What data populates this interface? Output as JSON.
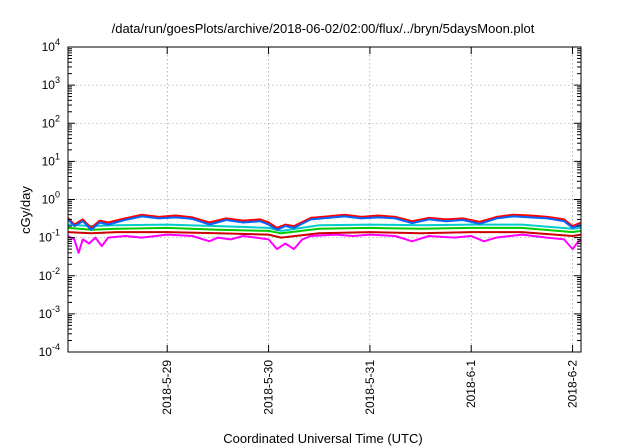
{
  "chart_data": {
    "type": "line",
    "title": "/data/run/goesPlots/archive/2018-06-02/02:00/flux/../bryn/5daysMoon.plot",
    "xlabel": "Coordinated Universal Time (UTC)",
    "ylabel": "cGy/day",
    "y_scale": "log",
    "ylim": [
      0.0001,
      10000
    ],
    "xlim": [
      "2018-05-28 00:30",
      "2018-06-02 02:00"
    ],
    "grid": true,
    "x_ticks": [
      "2018-5-29",
      "2018-5-30",
      "2018-5-31",
      "2018-6-1",
      "2018-6-2"
    ],
    "x_tick_dates": [
      "2018-05-29 00:00",
      "2018-05-30 00:00",
      "2018-05-31 00:00",
      "2018-06-01 00:00",
      "2018-06-02 00:00"
    ],
    "y_ticks": [
      {
        "value": 0.0001,
        "base": "10",
        "exp": "-4"
      },
      {
        "value": 0.001,
        "base": "10",
        "exp": "-3"
      },
      {
        "value": 0.01,
        "base": "10",
        "exp": "-2"
      },
      {
        "value": 0.1,
        "base": "10",
        "exp": "-1"
      },
      {
        "value": 1,
        "base": "10",
        "exp": "0"
      },
      {
        "value": 10,
        "base": "10",
        "exp": "1"
      },
      {
        "value": 100,
        "base": "10",
        "exp": "2"
      },
      {
        "value": 1000,
        "base": "10",
        "exp": "3"
      },
      {
        "value": 10000,
        "base": "10",
        "exp": "4"
      }
    ],
    "series": [
      {
        "color": "#ff00ff",
        "points": [
          [
            "2018-05-28 00:30",
            0.11
          ],
          [
            "2018-05-28 02:00",
            0.09
          ],
          [
            "2018-05-28 03:00",
            0.04
          ],
          [
            "2018-05-28 04:00",
            0.09
          ],
          [
            "2018-05-28 05:30",
            0.07
          ],
          [
            "2018-05-28 07:00",
            0.1
          ],
          [
            "2018-05-28 08:30",
            0.06
          ],
          [
            "2018-05-28 10:00",
            0.1
          ],
          [
            "2018-05-28 14:00",
            0.11
          ],
          [
            "2018-05-28 18:00",
            0.1
          ],
          [
            "2018-05-29 00:00",
            0.12
          ],
          [
            "2018-05-29 06:00",
            0.11
          ],
          [
            "2018-05-29 10:00",
            0.08
          ],
          [
            "2018-05-29 12:00",
            0.1
          ],
          [
            "2018-05-29 15:00",
            0.09
          ],
          [
            "2018-05-29 18:00",
            0.11
          ],
          [
            "2018-05-29 21:00",
            0.1
          ],
          [
            "2018-05-30 00:00",
            0.09
          ],
          [
            "2018-05-30 02:00",
            0.05
          ],
          [
            "2018-05-30 04:00",
            0.07
          ],
          [
            "2018-05-30 06:00",
            0.05
          ],
          [
            "2018-05-30 08:00",
            0.09
          ],
          [
            "2018-05-30 10:00",
            0.11
          ],
          [
            "2018-05-30 16:00",
            0.12
          ],
          [
            "2018-05-30 20:00",
            0.11
          ],
          [
            "2018-05-31 00:00",
            0.12
          ],
          [
            "2018-05-31 06:00",
            0.11
          ],
          [
            "2018-05-31 10:00",
            0.08
          ],
          [
            "2018-05-31 14:00",
            0.11
          ],
          [
            "2018-05-31 20:00",
            0.1
          ],
          [
            "2018-06-01 00:00",
            0.11
          ],
          [
            "2018-06-01 03:00",
            0.08
          ],
          [
            "2018-06-01 06:00",
            0.1
          ],
          [
            "2018-06-01 12:00",
            0.12
          ],
          [
            "2018-06-01 18:00",
            0.1
          ],
          [
            "2018-06-01 22:00",
            0.09
          ],
          [
            "2018-06-02 00:00",
            0.05
          ],
          [
            "2018-06-02 01:00",
            0.07
          ],
          [
            "2018-06-02 02:00",
            0.09
          ]
        ]
      },
      {
        "color": "#cc0000",
        "points": [
          [
            "2018-05-28 00:30",
            0.14
          ],
          [
            "2018-05-28 06:00",
            0.13
          ],
          [
            "2018-05-28 12:00",
            0.14
          ],
          [
            "2018-05-29 00:00",
            0.14
          ],
          [
            "2018-05-29 12:00",
            0.13
          ],
          [
            "2018-05-30 00:00",
            0.12
          ],
          [
            "2018-05-30 03:00",
            0.1
          ],
          [
            "2018-05-30 12:00",
            0.13
          ],
          [
            "2018-05-31 00:00",
            0.14
          ],
          [
            "2018-05-31 12:00",
            0.13
          ],
          [
            "2018-06-01 00:00",
            0.14
          ],
          [
            "2018-06-01 12:00",
            0.14
          ],
          [
            "2018-06-02 00:00",
            0.11
          ],
          [
            "2018-06-02 02:00",
            0.12
          ]
        ]
      },
      {
        "color": "#00cc00",
        "points": [
          [
            "2018-05-28 00:30",
            0.18
          ],
          [
            "2018-05-28 06:00",
            0.16
          ],
          [
            "2018-05-28 12:00",
            0.17
          ],
          [
            "2018-05-29 00:00",
            0.18
          ],
          [
            "2018-05-29 12:00",
            0.16
          ],
          [
            "2018-05-30 00:00",
            0.15
          ],
          [
            "2018-05-30 03:00",
            0.13
          ],
          [
            "2018-05-30 12:00",
            0.17
          ],
          [
            "2018-05-31 00:00",
            0.18
          ],
          [
            "2018-05-31 12:00",
            0.17
          ],
          [
            "2018-06-01 00:00",
            0.18
          ],
          [
            "2018-06-01 12:00",
            0.18
          ],
          [
            "2018-06-02 00:00",
            0.14
          ],
          [
            "2018-06-02 02:00",
            0.15
          ]
        ]
      },
      {
        "color": "#00cccc",
        "points": [
          [
            "2018-05-28 00:30",
            0.22
          ],
          [
            "2018-05-28 06:00",
            0.2
          ],
          [
            "2018-05-28 12:00",
            0.21
          ],
          [
            "2018-05-29 00:00",
            0.22
          ],
          [
            "2018-05-29 12:00",
            0.2
          ],
          [
            "2018-05-30 00:00",
            0.18
          ],
          [
            "2018-05-30 03:00",
            0.15
          ],
          [
            "2018-05-30 12:00",
            0.21
          ],
          [
            "2018-05-31 00:00",
            0.22
          ],
          [
            "2018-05-31 12:00",
            0.21
          ],
          [
            "2018-06-01 00:00",
            0.22
          ],
          [
            "2018-06-01 12:00",
            0.22
          ],
          [
            "2018-06-02 00:00",
            0.17
          ],
          [
            "2018-06-02 02:00",
            0.18
          ]
        ]
      },
      {
        "color": "#ff0000",
        "points": [
          [
            "2018-05-28 00:30",
            0.33
          ],
          [
            "2018-05-28 02:00",
            0.22
          ],
          [
            "2018-05-28 04:00",
            0.3
          ],
          [
            "2018-05-28 06:00",
            0.18
          ],
          [
            "2018-05-28 08:00",
            0.28
          ],
          [
            "2018-05-28 10:00",
            0.25
          ],
          [
            "2018-05-28 14:00",
            0.32
          ],
          [
            "2018-05-28 18:00",
            0.4
          ],
          [
            "2018-05-28 22:00",
            0.35
          ],
          [
            "2018-05-29 02:00",
            0.38
          ],
          [
            "2018-05-29 06:00",
            0.34
          ],
          [
            "2018-05-29 10:00",
            0.25
          ],
          [
            "2018-05-29 14:00",
            0.32
          ],
          [
            "2018-05-29 18:00",
            0.28
          ],
          [
            "2018-05-29 22:00",
            0.3
          ],
          [
            "2018-05-30 00:00",
            0.25
          ],
          [
            "2018-05-30 02:00",
            0.18
          ],
          [
            "2018-05-30 04:00",
            0.22
          ],
          [
            "2018-05-30 06:00",
            0.2
          ],
          [
            "2018-05-30 10:00",
            0.33
          ],
          [
            "2018-05-30 14:00",
            0.36
          ],
          [
            "2018-05-30 18:00",
            0.4
          ],
          [
            "2018-05-30 22:00",
            0.35
          ],
          [
            "2018-05-31 02:00",
            0.38
          ],
          [
            "2018-05-31 06:00",
            0.35
          ],
          [
            "2018-05-31 10:00",
            0.27
          ],
          [
            "2018-05-31 14:00",
            0.33
          ],
          [
            "2018-05-31 18:00",
            0.3
          ],
          [
            "2018-05-31 22:00",
            0.32
          ],
          [
            "2018-06-01 02:00",
            0.26
          ],
          [
            "2018-06-01 06:00",
            0.35
          ],
          [
            "2018-06-01 10:00",
            0.4
          ],
          [
            "2018-06-01 14:00",
            0.38
          ],
          [
            "2018-06-01 18:00",
            0.35
          ],
          [
            "2018-06-01 22:00",
            0.3
          ],
          [
            "2018-06-02 00:00",
            0.2
          ],
          [
            "2018-06-02 02:00",
            0.25
          ]
        ]
      },
      {
        "color": "#0066ff",
        "points": [
          [
            "2018-05-28 00:30",
            0.3
          ],
          [
            "2018-05-28 02:00",
            0.2
          ],
          [
            "2018-05-28 04:00",
            0.27
          ],
          [
            "2018-05-28 06:00",
            0.16
          ],
          [
            "2018-05-28 08:00",
            0.25
          ],
          [
            "2018-05-28 10:00",
            0.22
          ],
          [
            "2018-05-28 14:00",
            0.29
          ],
          [
            "2018-05-28 18:00",
            0.36
          ],
          [
            "2018-05-28 22:00",
            0.32
          ],
          [
            "2018-05-29 02:00",
            0.34
          ],
          [
            "2018-05-29 06:00",
            0.31
          ],
          [
            "2018-05-29 10:00",
            0.22
          ],
          [
            "2018-05-29 14:00",
            0.29
          ],
          [
            "2018-05-29 18:00",
            0.25
          ],
          [
            "2018-05-29 22:00",
            0.27
          ],
          [
            "2018-05-30 00:00",
            0.22
          ],
          [
            "2018-05-30 02:00",
            0.16
          ],
          [
            "2018-05-30 04:00",
            0.2
          ],
          [
            "2018-05-30 06:00",
            0.18
          ],
          [
            "2018-05-30 10:00",
            0.3
          ],
          [
            "2018-05-30 14:00",
            0.33
          ],
          [
            "2018-05-30 18:00",
            0.36
          ],
          [
            "2018-05-30 22:00",
            0.32
          ],
          [
            "2018-05-31 02:00",
            0.34
          ],
          [
            "2018-05-31 06:00",
            0.32
          ],
          [
            "2018-05-31 10:00",
            0.24
          ],
          [
            "2018-05-31 14:00",
            0.3
          ],
          [
            "2018-05-31 18:00",
            0.27
          ],
          [
            "2018-05-31 22:00",
            0.29
          ],
          [
            "2018-06-01 02:00",
            0.23
          ],
          [
            "2018-06-01 06:00",
            0.32
          ],
          [
            "2018-06-01 10:00",
            0.36
          ],
          [
            "2018-06-01 14:00",
            0.34
          ],
          [
            "2018-06-01 18:00",
            0.32
          ],
          [
            "2018-06-01 22:00",
            0.27
          ],
          [
            "2018-06-02 00:00",
            0.18
          ],
          [
            "2018-06-02 02:00",
            0.22
          ]
        ]
      }
    ]
  }
}
